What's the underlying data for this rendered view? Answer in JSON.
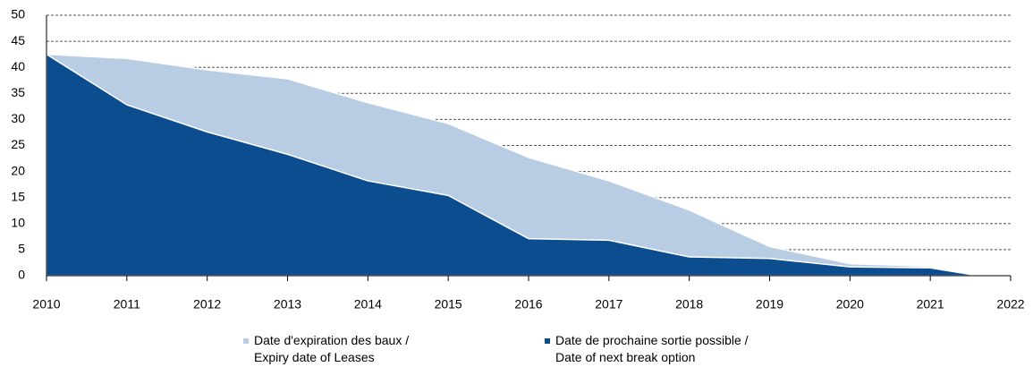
{
  "chart_data": {
    "type": "area",
    "x": [
      2010,
      2011,
      2012,
      2013,
      2014,
      2015,
      2016,
      2017,
      2018,
      2019,
      2020,
      2021,
      2021.6
    ],
    "series": [
      {
        "name": "Date d'expiration des baux /\nExpiry date of Leases",
        "color": "#b8cce4",
        "values": [
          42.5,
          41.7,
          39.5,
          37.8,
          33.2,
          29.2,
          22.7,
          18.2,
          12.6,
          5.6,
          2.3,
          1.8,
          0
        ]
      },
      {
        "name": "Date de prochaine sortie possible /\nDate of next break option",
        "color": "#0b4d8f",
        "values": [
          42.5,
          32.8,
          27.6,
          23.3,
          18.2,
          15.4,
          7.1,
          6.8,
          3.6,
          3.3,
          1.7,
          1.5,
          0
        ]
      }
    ],
    "xlim": [
      2010,
      2022
    ],
    "xticks": [
      2010,
      2011,
      2012,
      2013,
      2014,
      2015,
      2016,
      2017,
      2018,
      2019,
      2020,
      2021,
      2022
    ],
    "ylim": [
      0,
      50
    ],
    "yticks": [
      0,
      5,
      10,
      15,
      20,
      25,
      30,
      35,
      40,
      45,
      50
    ],
    "grid": true,
    "legend": "bottom"
  }
}
